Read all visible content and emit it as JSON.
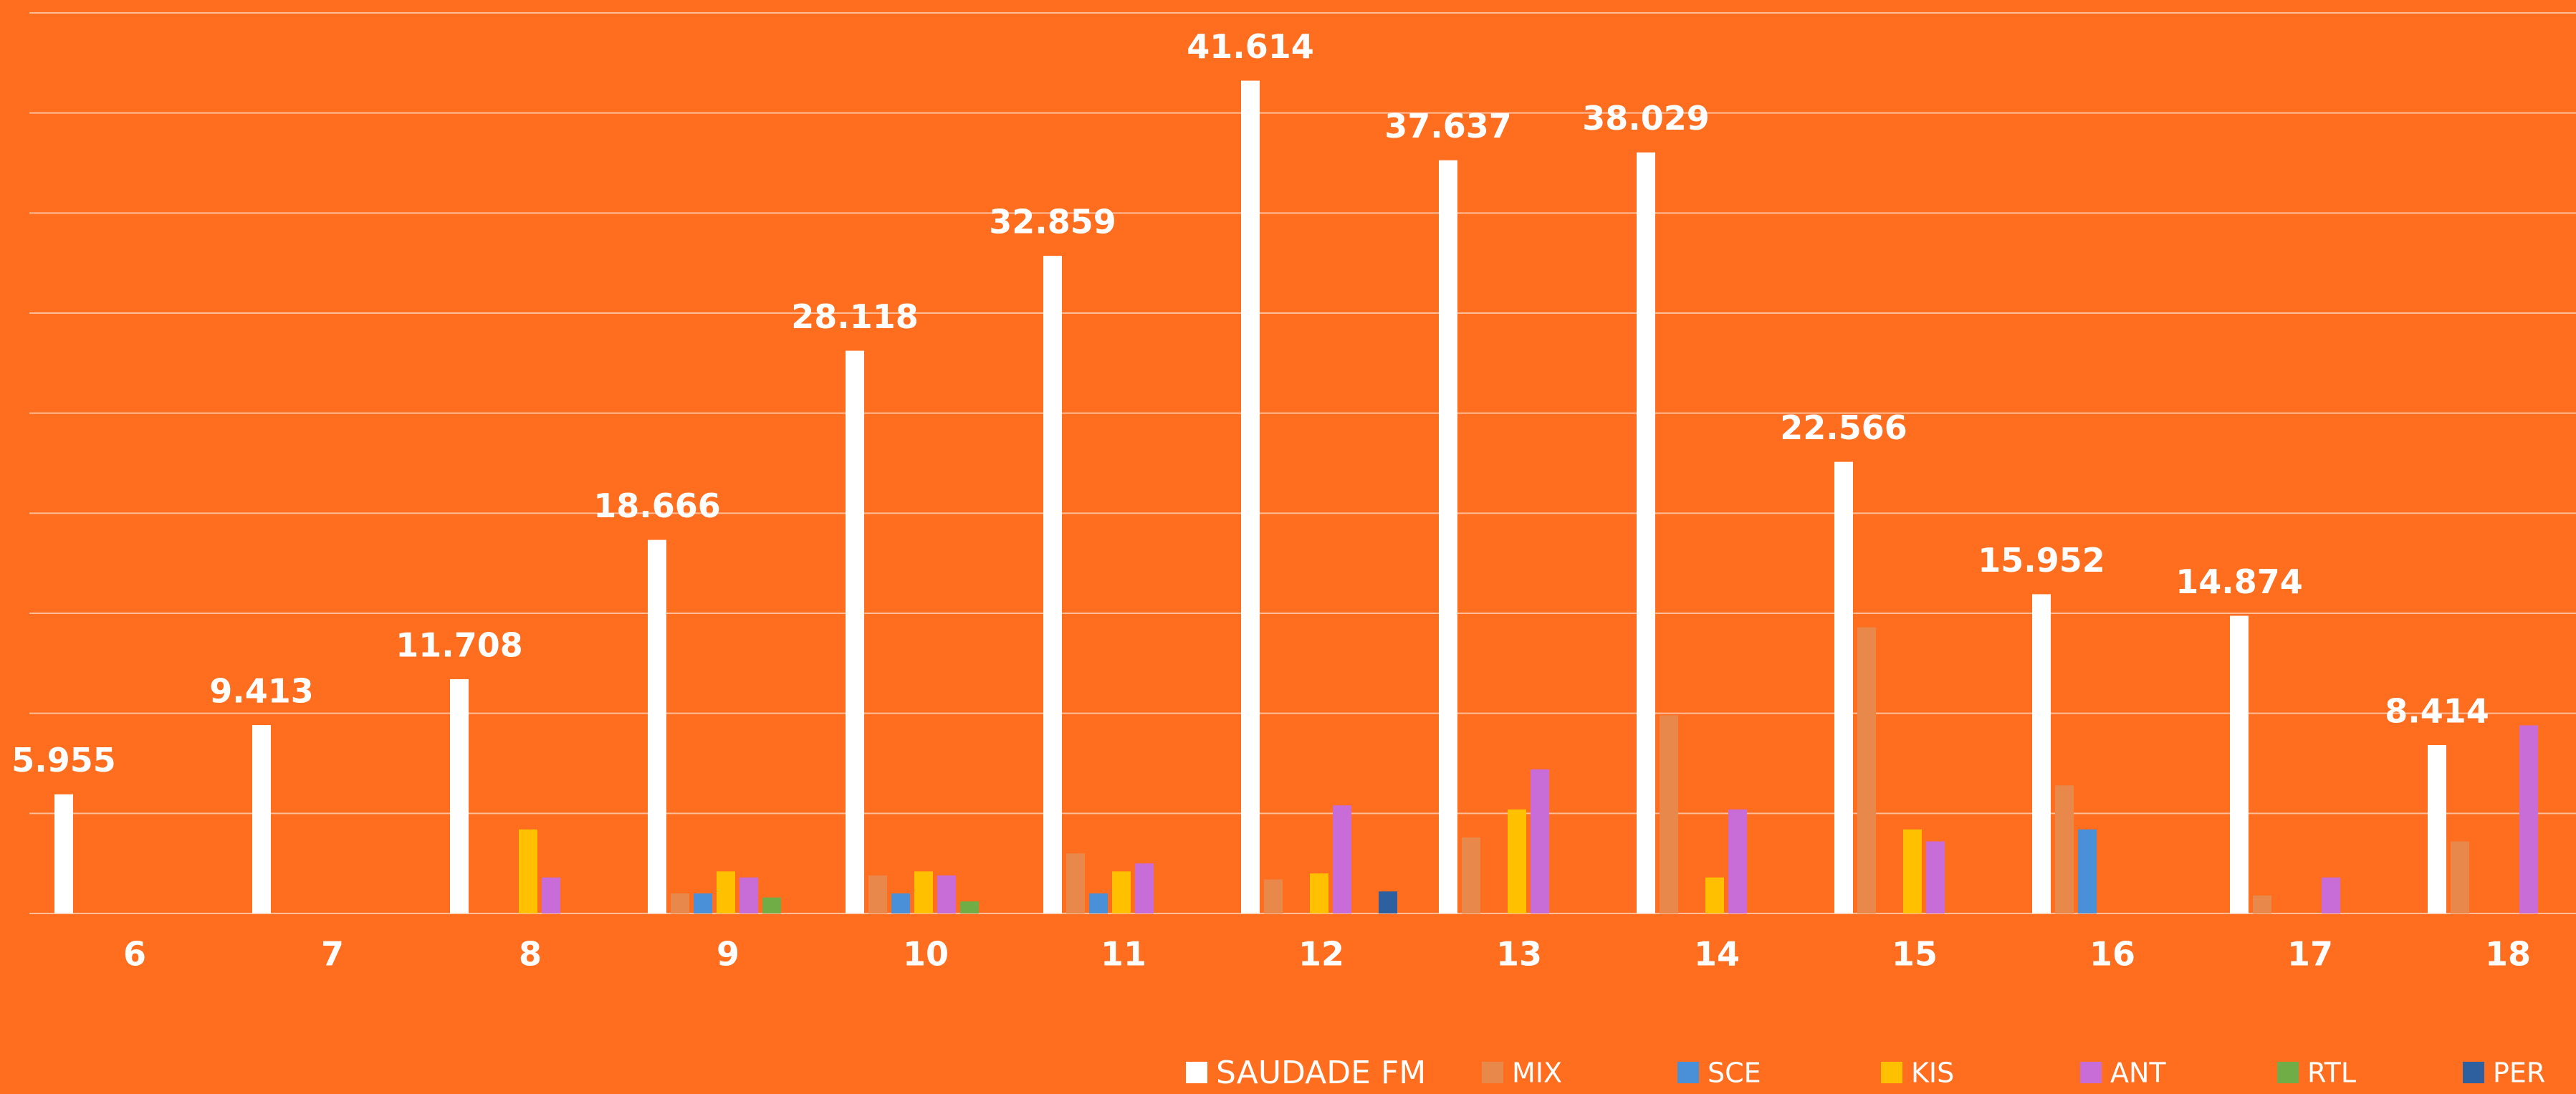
{
  "chart_data": {
    "type": "bar",
    "categories": [
      "6",
      "7",
      "8",
      "9",
      "10",
      "11",
      "12",
      "13",
      "14",
      "15",
      "16",
      "17",
      "18"
    ],
    "series": [
      {
        "name": "SAUDADE FM",
        "color": "#ffffff",
        "values": [
          5.955,
          9.413,
          11.708,
          18.666,
          28.118,
          32.859,
          41.614,
          37.637,
          38.029,
          22.566,
          15.952,
          14.874,
          8.414
        ]
      },
      {
        "name": "MIX",
        "color": "#e8884a",
        "values": [
          null,
          null,
          null,
          1.0,
          1.9,
          3.0,
          1.7,
          3.8,
          9.9,
          14.3,
          6.4,
          0.9,
          3.6
        ]
      },
      {
        "name": "SCE",
        "color": "#4a90d9",
        "values": [
          null,
          null,
          null,
          1.0,
          1.0,
          1.0,
          null,
          null,
          null,
          null,
          4.2,
          null,
          null
        ]
      },
      {
        "name": "KIS",
        "color": "#ffc000",
        "values": [
          null,
          null,
          4.2,
          2.1,
          2.1,
          2.1,
          2.0,
          5.2,
          1.8,
          4.2,
          null,
          null,
          null
        ]
      },
      {
        "name": "ANT",
        "color": "#c86dd7",
        "values": [
          null,
          null,
          1.8,
          1.8,
          1.9,
          2.5,
          5.4,
          7.2,
          5.2,
          3.6,
          null,
          1.8,
          9.4
        ]
      },
      {
        "name": "RTL",
        "color": "#70ad47",
        "values": [
          null,
          null,
          null,
          0.8,
          0.6,
          null,
          null,
          null,
          null,
          null,
          null,
          null,
          null
        ]
      },
      {
        "name": "PER",
        "color": "#2e5f9e",
        "values": [
          null,
          null,
          null,
          null,
          null,
          null,
          1.1,
          null,
          null,
          null,
          null,
          null,
          null
        ]
      }
    ],
    "ylim": [
      0,
      45
    ],
    "yticks": [
      0,
      5,
      10,
      15,
      20,
      25,
      30,
      35,
      40,
      45
    ],
    "grid": true
  }
}
